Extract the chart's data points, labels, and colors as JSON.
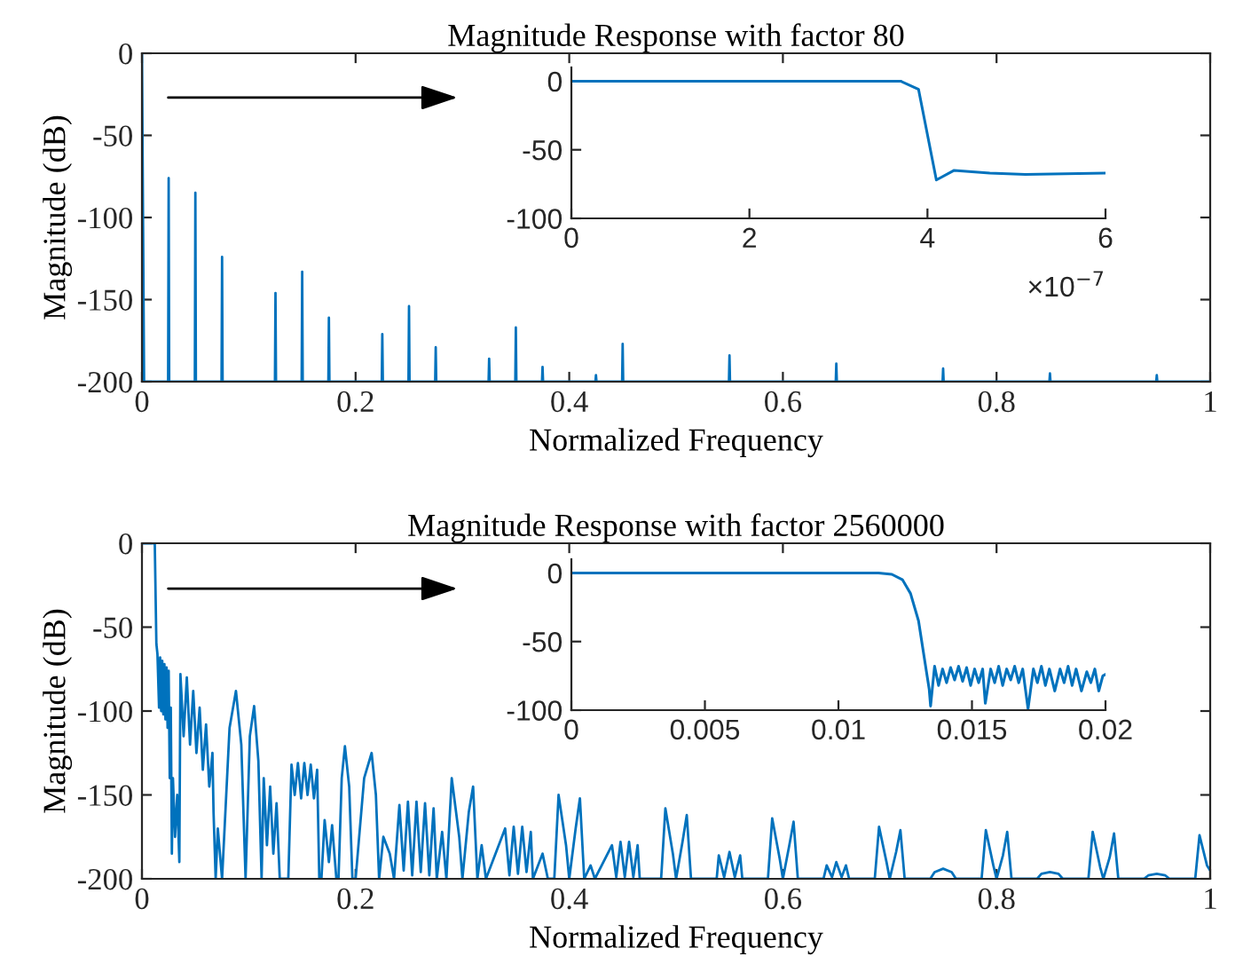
{
  "chart_data": [
    {
      "type": "line",
      "title": "Magnitude Response with factor 80",
      "xlabel": "Normalized Frequency",
      "ylabel": "Magnitude (dB)",
      "xlim": [
        0,
        1
      ],
      "ylim": [
        -200,
        0
      ],
      "xticks": [
        0,
        0.2,
        0.4,
        0.6,
        0.8,
        1
      ],
      "yticks": [
        -200,
        -150,
        -100,
        -50,
        0
      ],
      "x": [
        0,
        0.002,
        0.0245,
        0.025,
        0.0255,
        0.0495,
        0.05,
        0.0505,
        0.0745,
        0.075,
        0.0755,
        0.1245,
        0.125,
        0.1255,
        0.1495,
        0.15,
        0.1505,
        0.1745,
        0.175,
        0.1755,
        0.2245,
        0.225,
        0.2255,
        0.2495,
        0.25,
        0.2505,
        0.2745,
        0.275,
        0.2755,
        0.3245,
        0.325,
        0.3255,
        0.3495,
        0.35,
        0.3505,
        0.3745,
        0.375,
        0.3755,
        0.4245,
        0.425,
        0.4255,
        0.4495,
        0.45,
        0.4505,
        0.5495,
        0.55,
        0.5505,
        0.6495,
        0.65,
        0.6505,
        0.7495,
        0.75,
        0.7505,
        0.8495,
        0.85,
        0.8505,
        0.9495,
        0.95,
        0.9505,
        1
      ],
      "series": [
        {
          "color": "#0072bd",
          "values": [
            0,
            -200,
            -200,
            -76,
            -200,
            -200,
            -85,
            -200,
            -200,
            -124,
            -200,
            -200,
            -146,
            -200,
            -200,
            -133,
            -200,
            -200,
            -161,
            -200,
            -200,
            -171,
            -200,
            -200,
            -154,
            -200,
            -200,
            -179,
            -200,
            -200,
            -186,
            -200,
            -200,
            -167,
            -200,
            -200,
            -191,
            -200,
            -200,
            -196,
            -200,
            -200,
            -177,
            -200,
            -200,
            -184,
            -200,
            -200,
            -189,
            -200,
            -200,
            -192,
            -200,
            -200,
            -195,
            -200,
            -200,
            -196,
            -200,
            -200
          ]
        }
      ]
    },
    {
      "type": "line",
      "xlim": [
        0,
        6
      ],
      "ylim": [
        -100,
        10
      ],
      "xticks": [
        0,
        2,
        4,
        6
      ],
      "yticks": [
        -100,
        -50,
        0
      ],
      "annotations": [
        "×10$^{−7}$"
      ],
      "x": [
        0,
        3.7,
        3.9,
        4.1,
        4.3,
        4.7,
        5.1,
        6
      ],
      "series": [
        {
          "color": "#0072bd",
          "values": [
            0,
            0,
            -6,
            -72,
            -65,
            -67,
            -68,
            -67
          ]
        }
      ]
    },
    {
      "type": "line",
      "title": "Magnitude Response with factor 2560000",
      "xlabel": "Normalized Frequency",
      "ylabel": "Magnitude (dB)",
      "xlim": [
        0,
        1
      ],
      "ylim": [
        -200,
        0
      ],
      "xticks": [
        0,
        0.2,
        0.4,
        0.6,
        0.8,
        1
      ],
      "yticks": [
        -200,
        -150,
        -100,
        -50,
        0
      ],
      "x": [
        0,
        0.012,
        0.0135,
        0.0145,
        0.016,
        0.017,
        0.018,
        0.019,
        0.02,
        0.021,
        0.022,
        0.023,
        0.024,
        0.025,
        0.026,
        0.027,
        0.028,
        0.029,
        0.031,
        0.033,
        0.035,
        0.036,
        0.039,
        0.042,
        0.045,
        0.048,
        0.051,
        0.054,
        0.057,
        0.06,
        0.063,
        0.066,
        0.067,
        0.069,
        0.071,
        0.075,
        0.082,
        0.088,
        0.093,
        0.097,
        0.101,
        0.105,
        0.109,
        0.112,
        0.114,
        0.117,
        0.12,
        0.123,
        0.126,
        0.129,
        0.137,
        0.14,
        0.143,
        0.146,
        0.149,
        0.152,
        0.155,
        0.158,
        0.161,
        0.164,
        0.166,
        0.168,
        0.171,
        0.175,
        0.178,
        0.182,
        0.184,
        0.187,
        0.19,
        0.194,
        0.197,
        0.2,
        0.208,
        0.215,
        0.219,
        0.222,
        0.226,
        0.232,
        0.236,
        0.241,
        0.245,
        0.249,
        0.253,
        0.257,
        0.261,
        0.265,
        0.269,
        0.273,
        0.276,
        0.281,
        0.285,
        0.29,
        0.297,
        0.3,
        0.306,
        0.31,
        0.314,
        0.318,
        0.322,
        0.34,
        0.344,
        0.348,
        0.352,
        0.356,
        0.36,
        0.364,
        0.366,
        0.375,
        0.38,
        0.386,
        0.39,
        0.397,
        0.4,
        0.406,
        0.41,
        0.414,
        0.42,
        0.424,
        0.44,
        0.444,
        0.448,
        0.452,
        0.456,
        0.46,
        0.464,
        0.466,
        0.486,
        0.49,
        0.497,
        0.5,
        0.506,
        0.51,
        0.514,
        0.538,
        0.54,
        0.545,
        0.55,
        0.555,
        0.56,
        0.562,
        0.586,
        0.59,
        0.597,
        0.6,
        0.606,
        0.61,
        0.614,
        0.638,
        0.641,
        0.646,
        0.65,
        0.655,
        0.659,
        0.662,
        0.686,
        0.69,
        0.697,
        0.7,
        0.706,
        0.71,
        0.714,
        0.738,
        0.742,
        0.75,
        0.758,
        0.762,
        0.786,
        0.79,
        0.797,
        0.8,
        0.806,
        0.81,
        0.814,
        0.838,
        0.842,
        0.85,
        0.858,
        0.862,
        0.886,
        0.89,
        0.897,
        0.9,
        0.906,
        0.91,
        0.914,
        0.938,
        0.942,
        0.95,
        0.958,
        0.962,
        0.986,
        0.99,
        0.997,
        1.0
      ],
      "series": [
        {
          "color": "#0072bd",
          "values": [
            0,
            0,
            -60,
            -66,
            -98,
            -68,
            -100,
            -70,
            -102,
            -72,
            -105,
            -74,
            -110,
            -76,
            -140,
            -98,
            -185,
            -140,
            -175,
            -150,
            -190,
            -78,
            -115,
            -80,
            -120,
            -88,
            -125,
            -98,
            -135,
            -108,
            -145,
            -125,
            -160,
            -200,
            -170,
            -200,
            -110,
            -88,
            -120,
            -200,
            -115,
            -97,
            -130,
            -200,
            -140,
            -180,
            -145,
            -185,
            -155,
            -200,
            -200,
            -132,
            -150,
            -131,
            -152,
            -131,
            -150,
            -132,
            -152,
            -135,
            -200,
            -200,
            -165,
            -190,
            -168,
            -200,
            -200,
            -140,
            -121,
            -145,
            -200,
            -200,
            -140,
            -125,
            -150,
            -200,
            -175,
            -185,
            -200,
            -156,
            -195,
            -154,
            -198,
            -154,
            -196,
            -155,
            -198,
            -158,
            -200,
            -172,
            -200,
            -140,
            -175,
            -200,
            -160,
            -145,
            -200,
            -180,
            -200,
            -170,
            -198,
            -169,
            -197,
            -169,
            -196,
            -172,
            -200,
            -185,
            -200,
            -200,
            -150,
            -180,
            -200,
            -170,
            -152,
            -200,
            -192,
            -200,
            -180,
            -199,
            -178,
            -199,
            -178,
            -199,
            -180,
            -200,
            -200,
            -158,
            -185,
            -200,
            -178,
            -162,
            -200,
            -200,
            -186,
            -199,
            -184,
            -199,
            -186,
            -200,
            -200,
            -164,
            -188,
            -200,
            -180,
            -166,
            -200,
            -200,
            -192,
            -199,
            -190,
            -199,
            -192,
            -200,
            -200,
            -169,
            -190,
            -200,
            -184,
            -171,
            -200,
            -200,
            -196,
            -194,
            -196,
            -200,
            -200,
            -171,
            -192,
            -200,
            -186,
            -172,
            -200,
            -200,
            -197,
            -196,
            -197,
            -200,
            -200,
            -172,
            -193,
            -200,
            -187,
            -173,
            -200,
            -200,
            -198,
            -197,
            -198,
            -200,
            -200,
            -174,
            -192,
            -195
          ]
        }
      ]
    },
    {
      "type": "line",
      "xlim": [
        0,
        0.02
      ],
      "ylim": [
        -100,
        10
      ],
      "xticks": [
        0,
        0.005,
        0.01,
        0.015,
        0.02
      ],
      "yticks": [
        -100,
        -50,
        0
      ],
      "x": [
        0,
        0.0115,
        0.012,
        0.0124,
        0.0127,
        0.013,
        0.0132,
        0.0134,
        0.01345,
        0.0136,
        0.01375,
        0.0139,
        0.01405,
        0.0142,
        0.01435,
        0.0145,
        0.01465,
        0.0148,
        0.01495,
        0.0151,
        0.01525,
        0.0154,
        0.0155,
        0.0157,
        0.01585,
        0.016,
        0.01615,
        0.0163,
        0.01645,
        0.0166,
        0.01675,
        0.0169,
        0.0171,
        0.0173,
        0.01745,
        0.0176,
        0.01775,
        0.0179,
        0.0181,
        0.0183,
        0.01845,
        0.0186,
        0.01875,
        0.0189,
        0.0191,
        0.0193,
        0.01945,
        0.0196,
        0.01975,
        0.0199,
        0.02
      ],
      "series": [
        {
          "color": "#0072bd",
          "values": [
            0,
            0,
            -1,
            -5,
            -15,
            -35,
            -60,
            -85,
            -97,
            -68,
            -82,
            -70,
            -80,
            -69,
            -78,
            -68,
            -79,
            -69,
            -82,
            -70,
            -80,
            -70,
            -95,
            -70,
            -80,
            -68,
            -82,
            -70,
            -78,
            -68,
            -80,
            -70,
            -99,
            -70,
            -80,
            -68,
            -82,
            -70,
            -86,
            -70,
            -80,
            -68,
            -82,
            -70,
            -86,
            -72,
            -80,
            -70,
            -86,
            -75,
            -74
          ]
        }
      ]
    }
  ]
}
